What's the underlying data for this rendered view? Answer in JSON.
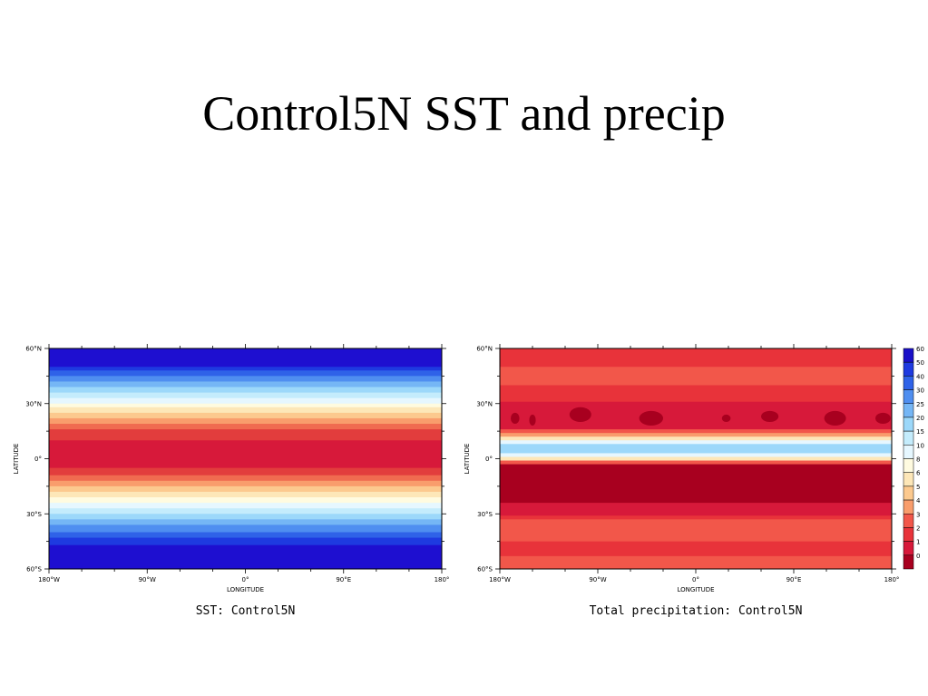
{
  "slide": {
    "title": "Control5N SST and precip"
  },
  "chart_data": [
    {
      "type": "heatmap",
      "title": "",
      "caption": "SST: Control5N",
      "xlabel": "LONGITUDE",
      "ylabel": "LATITUDE",
      "xlim": [
        -180,
        180
      ],
      "ylim": [
        -60,
        60
      ],
      "x_ticks": [
        {
          "value": -180,
          "label": "180°W"
        },
        {
          "value": -90,
          "label": "90°W"
        },
        {
          "value": 0,
          "label": "0°"
        },
        {
          "value": 90,
          "label": "90°E"
        },
        {
          "value": 180,
          "label": "180°"
        }
      ],
      "y_ticks": [
        {
          "value": 60,
          "label": "60°N"
        },
        {
          "value": 30,
          "label": "30°N"
        },
        {
          "value": 0,
          "label": "0°"
        },
        {
          "value": -30,
          "label": "30°S"
        },
        {
          "value": -60,
          "label": "60°S"
        }
      ],
      "bands": [
        {
          "lat_top": 60,
          "lat_bottom": 50,
          "color": "#1e0fd0"
        },
        {
          "lat_top": 50,
          "lat_bottom": 48,
          "color": "#1e3ae0"
        },
        {
          "lat_top": 48,
          "lat_bottom": 45,
          "color": "#2f62e8"
        },
        {
          "lat_top": 45,
          "lat_bottom": 42,
          "color": "#4f8ef0"
        },
        {
          "lat_top": 42,
          "lat_bottom": 39,
          "color": "#75b6f5"
        },
        {
          "lat_top": 39,
          "lat_bottom": 36,
          "color": "#9cd8fa"
        },
        {
          "lat_top": 36,
          "lat_bottom": 33,
          "color": "#c4ecfc"
        },
        {
          "lat_top": 33,
          "lat_bottom": 30,
          "color": "#e6f7ff"
        },
        {
          "lat_top": 30,
          "lat_bottom": 28,
          "color": "#fffbe0"
        },
        {
          "lat_top": 28,
          "lat_bottom": 25,
          "color": "#fde7b8"
        },
        {
          "lat_top": 25,
          "lat_bottom": 22,
          "color": "#fcc98e"
        },
        {
          "lat_top": 22,
          "lat_bottom": 19,
          "color": "#f99d6c"
        },
        {
          "lat_top": 19,
          "lat_bottom": 16,
          "color": "#f06b50"
        },
        {
          "lat_top": 16,
          "lat_bottom": 10,
          "color": "#e23d3d"
        },
        {
          "lat_top": 10,
          "lat_bottom": -5,
          "color": "#d7193a"
        },
        {
          "lat_top": -5,
          "lat_bottom": -9,
          "color": "#e23d3d"
        },
        {
          "lat_top": -9,
          "lat_bottom": -12,
          "color": "#f06b50"
        },
        {
          "lat_top": -12,
          "lat_bottom": -15,
          "color": "#f99d6c"
        },
        {
          "lat_top": -15,
          "lat_bottom": -18,
          "color": "#fcc98e"
        },
        {
          "lat_top": -18,
          "lat_bottom": -21,
          "color": "#fde7b8"
        },
        {
          "lat_top": -21,
          "lat_bottom": -24,
          "color": "#fffbe0"
        },
        {
          "lat_top": -24,
          "lat_bottom": -27,
          "color": "#e6f7ff"
        },
        {
          "lat_top": -27,
          "lat_bottom": -30,
          "color": "#c4ecfc"
        },
        {
          "lat_top": -30,
          "lat_bottom": -33,
          "color": "#9cd8fa"
        },
        {
          "lat_top": -33,
          "lat_bottom": -36,
          "color": "#75b6f5"
        },
        {
          "lat_top": -36,
          "lat_bottom": -40,
          "color": "#4f8ef0"
        },
        {
          "lat_top": -40,
          "lat_bottom": -43,
          "color": "#2f62e8"
        },
        {
          "lat_top": -43,
          "lat_bottom": -47,
          "color": "#1e3ae0"
        },
        {
          "lat_top": -47,
          "lat_bottom": -60,
          "color": "#1e0fd0"
        }
      ]
    },
    {
      "type": "heatmap",
      "title": "",
      "caption": "Total precipitation: Control5N",
      "xlabel": "LONGITUDE",
      "ylabel": "LATITUDE",
      "xlim": [
        -180,
        180
      ],
      "ylim": [
        -60,
        60
      ],
      "x_ticks": [
        {
          "value": -180,
          "label": "180°W"
        },
        {
          "value": -90,
          "label": "90°W"
        },
        {
          "value": 0,
          "label": "0°"
        },
        {
          "value": 90,
          "label": "90°E"
        },
        {
          "value": 180,
          "label": "180°"
        }
      ],
      "y_ticks": [
        {
          "value": 60,
          "label": "60°N"
        },
        {
          "value": 30,
          "label": "30°N"
        },
        {
          "value": 0,
          "label": "0°"
        },
        {
          "value": -30,
          "label": "30°S"
        },
        {
          "value": -60,
          "label": "60°S"
        }
      ],
      "bands": [
        {
          "lat_top": 60,
          "lat_bottom": 50,
          "color": "#e8333a"
        },
        {
          "lat_top": 50,
          "lat_bottom": 40,
          "color": "#f2574a"
        },
        {
          "lat_top": 40,
          "lat_bottom": 31,
          "color": "#e8333a"
        },
        {
          "lat_top": 31,
          "lat_bottom": 16,
          "color": "#d7193a"
        },
        {
          "lat_top": 16,
          "lat_bottom": 14,
          "color": "#f2574a"
        },
        {
          "lat_top": 14,
          "lat_bottom": 12,
          "color": "#f99d6c"
        },
        {
          "lat_top": 12,
          "lat_bottom": 10,
          "color": "#fde7b8"
        },
        {
          "lat_top": 10,
          "lat_bottom": 8,
          "color": "#e6f7ff"
        },
        {
          "lat_top": 8,
          "lat_bottom": 3,
          "color": "#9cd8fa"
        },
        {
          "lat_top": 3,
          "lat_bottom": 1,
          "color": "#e6f7ff"
        },
        {
          "lat_top": 1,
          "lat_bottom": -1,
          "color": "#fde7b8"
        },
        {
          "lat_top": -1,
          "lat_bottom": -3,
          "color": "#f2574a"
        },
        {
          "lat_top": -3,
          "lat_bottom": -24,
          "color": "#a8001f"
        },
        {
          "lat_top": -24,
          "lat_bottom": -31,
          "color": "#d7193a"
        },
        {
          "lat_top": -31,
          "lat_bottom": -33,
          "color": "#e8333a"
        },
        {
          "lat_top": -33,
          "lat_bottom": -45,
          "color": "#f2574a"
        },
        {
          "lat_top": -45,
          "lat_bottom": -53,
          "color": "#e8333a"
        },
        {
          "lat_top": -53,
          "lat_bottom": -60,
          "color": "#f2574a"
        }
      ],
      "blobs": [
        {
          "lon": -166,
          "lat": 22,
          "rlon": 4,
          "rlat": 3,
          "color": "#a8001f"
        },
        {
          "lon": -150,
          "lat": 21,
          "rlon": 3,
          "rlat": 3,
          "color": "#a8001f"
        },
        {
          "lon": -106,
          "lat": 24,
          "rlon": 10,
          "rlat": 4,
          "color": "#a8001f"
        },
        {
          "lon": -41,
          "lat": 22,
          "rlon": 11,
          "rlat": 4,
          "color": "#a8001f"
        },
        {
          "lon": 28,
          "lat": 22,
          "rlon": 4,
          "rlat": 2,
          "color": "#a8001f"
        },
        {
          "lon": 68,
          "lat": 23,
          "rlon": 8,
          "rlat": 3,
          "color": "#a8001f"
        },
        {
          "lon": 128,
          "lat": 22,
          "rlon": 10,
          "rlat": 4,
          "color": "#a8001f"
        },
        {
          "lon": 172,
          "lat": 22,
          "rlon": 7,
          "rlat": 3,
          "color": "#a8001f"
        }
      ],
      "colorbar": {
        "levels": [
          "60",
          "50",
          "40",
          "30",
          "25",
          "20",
          "15",
          "10",
          "8",
          "6",
          "5",
          "4",
          "3",
          "2",
          "1",
          "0"
        ],
        "colors": [
          "#1a10c8",
          "#1e3ae0",
          "#2f62e8",
          "#4f8ef0",
          "#75b6f5",
          "#9cd8fa",
          "#c4ecfc",
          "#e6f7ff",
          "#fffbe0",
          "#fde7b8",
          "#fcc98e",
          "#f99d6c",
          "#f2574a",
          "#e8333a",
          "#d7193a",
          "#a8001f"
        ]
      }
    }
  ]
}
